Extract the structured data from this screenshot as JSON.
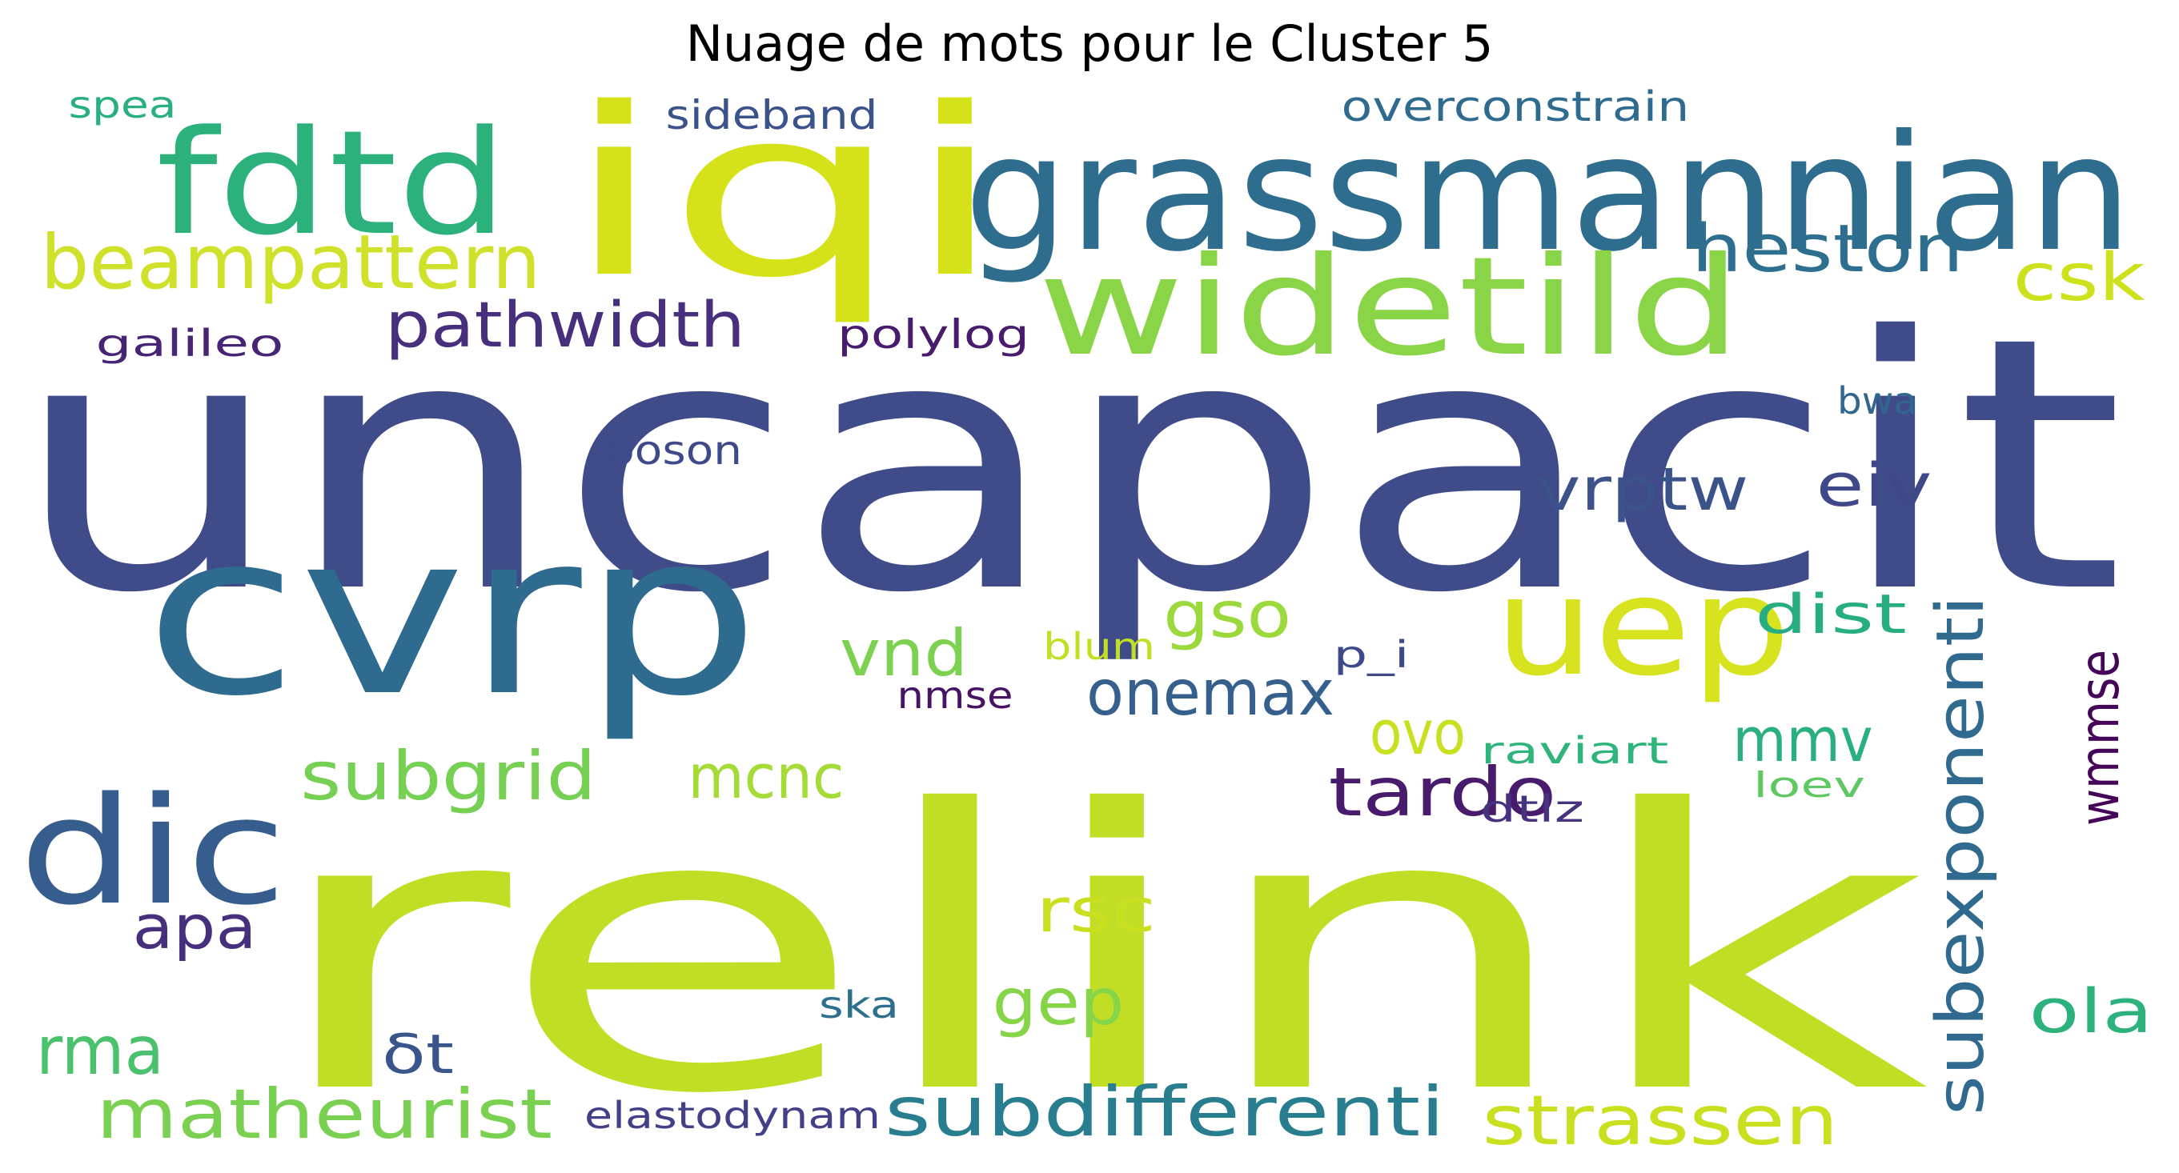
{
  "title": "Nuage de mots pour le Cluster 5",
  "words": [
    {
      "text": "uncapacit",
      "color": "#404c8a"
    },
    {
      "text": "relink",
      "color": "#c1de25"
    },
    {
      "text": "iqi",
      "color": "#d5e21a"
    },
    {
      "text": "grassmannian",
      "color": "#2f6d8e"
    },
    {
      "text": "cvrp",
      "color": "#2e6b8e"
    },
    {
      "text": "fdtd",
      "color": "#2cb17d"
    },
    {
      "text": "widetild",
      "color": "#8ad547"
    },
    {
      "text": "uep",
      "color": "#d6e31e"
    },
    {
      "text": "dic",
      "color": "#365d8d"
    },
    {
      "text": "beampattern",
      "color": "#cfe12a"
    },
    {
      "text": "heston",
      "color": "#2e6e8e"
    },
    {
      "text": "csk",
      "color": "#cde11d"
    },
    {
      "text": "pathwidth",
      "color": "#472f7d"
    },
    {
      "text": "subdifferenti",
      "color": "#287d8e"
    },
    {
      "text": "matheurist",
      "color": "#7ad151"
    },
    {
      "text": "strassen",
      "color": "#c8e020"
    },
    {
      "text": "subexponenti",
      "color": "#306a8e"
    },
    {
      "text": "vrptw",
      "color": "#3b528b"
    },
    {
      "text": "eiv",
      "color": "#3f4889"
    },
    {
      "text": "subgrid",
      "color": "#75d054"
    },
    {
      "text": "tardo",
      "color": "#481b6d"
    },
    {
      "text": "onemax",
      "color": "#35608d"
    },
    {
      "text": "gso",
      "color": "#9bd93c"
    },
    {
      "text": "vnd",
      "color": "#7cd250"
    },
    {
      "text": "dist",
      "color": "#26ad81"
    },
    {
      "text": "mmv",
      "color": "#2ab07f"
    },
    {
      "text": "mcnc",
      "color": "#a5db36"
    },
    {
      "text": "ovo",
      "color": "#c8e020"
    },
    {
      "text": "wmmse",
      "color": "#450559"
    },
    {
      "text": "rsc",
      "color": "#c9e020"
    },
    {
      "text": "gep",
      "color": "#86d549"
    },
    {
      "text": "ola",
      "color": "#2db27d"
    },
    {
      "text": "rma",
      "color": "#4ac16d"
    },
    {
      "text": "apa",
      "color": "#46307e"
    },
    {
      "text": "δt",
      "color": "#3a548c"
    },
    {
      "text": "elastodynam",
      "color": "#424086"
    },
    {
      "text": "sideband",
      "color": "#3b528b"
    },
    {
      "text": "overconstrain",
      "color": "#2f6b8e"
    },
    {
      "text": "spea",
      "color": "#2ab07f"
    },
    {
      "text": "galileo",
      "color": "#482475"
    },
    {
      "text": "polylog",
      "color": "#481b6d"
    },
    {
      "text": "boson",
      "color": "#3e4a89"
    },
    {
      "text": "bwa",
      "color": "#31678e"
    },
    {
      "text": "blum",
      "color": "#c2df23"
    },
    {
      "text": "p_i",
      "color": "#3e4989"
    },
    {
      "text": "nmse",
      "color": "#471365"
    },
    {
      "text": "raviart",
      "color": "#2fb47c"
    },
    {
      "text": "loev",
      "color": "#5ec962"
    },
    {
      "text": "dtlz",
      "color": "#46327e"
    },
    {
      "text": "ska",
      "color": "#2e6f8e"
    }
  ]
}
